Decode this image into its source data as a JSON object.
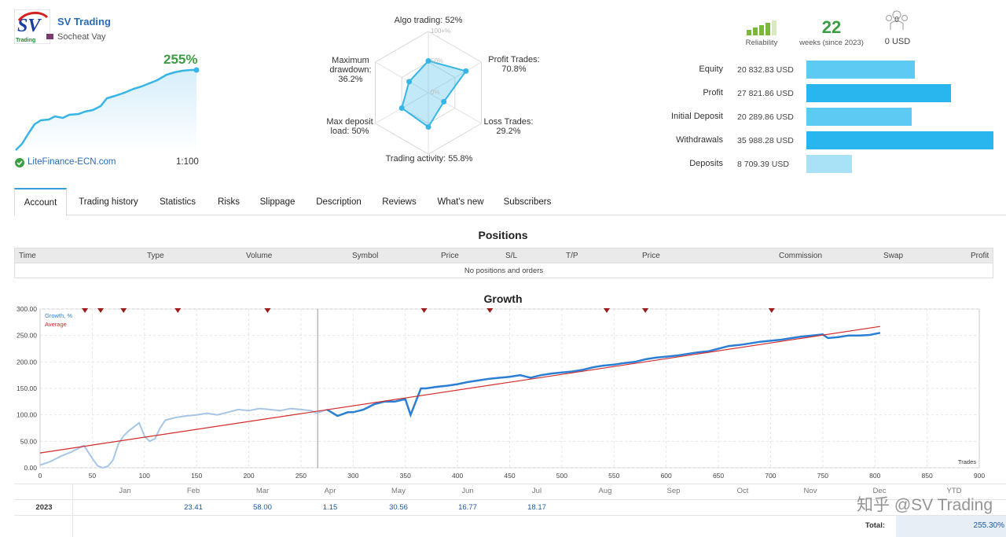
{
  "header": {
    "title": "SV Trading",
    "author": "Socheat Vay",
    "logo_text": "Trading",
    "growth": "255%",
    "broker": "LiteFinance-ECN.com",
    "leverage": "1:100"
  },
  "radar": {
    "algo": "Algo trading: 52%",
    "profit_trades": "Profit Trades:",
    "profit_trades_val": "70.8%",
    "loss_trades": "Loss Trades:",
    "loss_trades_val": "29.2%",
    "activity": "Trading activity: 55.8%",
    "deposit_load_1": "Max deposit",
    "deposit_load_2": "load: 50%",
    "max_dd_1": "Maximum",
    "max_dd_2": "drawdown:",
    "max_dd_3": "36.2%",
    "ring100": "100+%",
    "ring50": "50%",
    "ring0": "0%",
    "axis_values": [
      52,
      70.8,
      29.2,
      55.8,
      50,
      36.2
    ]
  },
  "stats": {
    "reliability": "Reliability",
    "weeks": "22",
    "weeks_label": "weeks (since 2023)",
    "subscribers_count": "0",
    "subscribers_funds": "0 USD"
  },
  "balances": [
    {
      "label": "Equity",
      "value": "20 832.83 USD",
      "amount": 20832.83,
      "color": "#5ccaf2"
    },
    {
      "label": "Profit",
      "value": "27 821.86 USD",
      "amount": 27821.86,
      "color": "#29b6ee"
    },
    {
      "label": "Initial Deposit",
      "value": "20 289.86 USD",
      "amount": 20289.86,
      "color": "#5ccaf2"
    },
    {
      "label": "Withdrawals",
      "value": "35 988.28 USD",
      "amount": 35988.28,
      "color": "#29b6ee"
    },
    {
      "label": "Deposits",
      "value": "8 709.39 USD",
      "amount": 8709.39,
      "color": "#a9e2f7"
    }
  ],
  "tabs": [
    "Account",
    "Trading history",
    "Statistics",
    "Risks",
    "Slippage",
    "Description",
    "Reviews",
    "What's new",
    "Subscribers"
  ],
  "positions": {
    "title": "Positions",
    "columns": [
      "Time",
      "Type",
      "Volume",
      "Symbol",
      "Price",
      "S/L",
      "T/P",
      "Price",
      "Commission",
      "Swap",
      "Profit"
    ],
    "empty": "No positions and orders"
  },
  "growth": {
    "title": "Growth",
    "legend_growth": "Growth, %",
    "legend_average": "Average",
    "trades_label": "Trades",
    "months": [
      "Jan",
      "Feb",
      "Mar",
      "Apr",
      "May",
      "Jun",
      "Jul",
      "Aug",
      "Sep",
      "Oct",
      "Nov",
      "Dec",
      "YTD"
    ],
    "year": "2023",
    "year_values": [
      "",
      "23.41",
      "58.00",
      "1.15",
      "30.56",
      "16.77",
      "18.17",
      "",
      "",
      "",
      "",
      "",
      ""
    ],
    "total_label": "Total:",
    "total_value": "255.30%",
    "watermark": "知乎 @SV Trading"
  },
  "chart_data": {
    "type": "line",
    "title": "Growth",
    "xlabel": "Trades",
    "ylabel": "",
    "xlim": [
      0,
      900
    ],
    "ylim": [
      0,
      300
    ],
    "x_ticks": [
      0,
      50,
      100,
      150,
      200,
      250,
      300,
      350,
      400,
      450,
      500,
      550,
      600,
      650,
      700,
      750,
      800,
      850,
      900
    ],
    "y_ticks": [
      "0.00",
      "50.00",
      "100.00",
      "150.00",
      "200.00",
      "250.00",
      "300.00"
    ],
    "series": [
      {
        "name": "Growth, %",
        "x": [
          0,
          10,
          20,
          30,
          42,
          50,
          55,
          60,
          65,
          70,
          75,
          80,
          85,
          95,
          100,
          105,
          110,
          115,
          120,
          130,
          140,
          150,
          160,
          170,
          180,
          190,
          200,
          210,
          220,
          230,
          240,
          250,
          260,
          265,
          275,
          285,
          295,
          300,
          310,
          320,
          330,
          340,
          350,
          355,
          360,
          365,
          370,
          380,
          390,
          400,
          410,
          420,
          430,
          440,
          450,
          460,
          470,
          480,
          490,
          500,
          510,
          520,
          530,
          540,
          550,
          560,
          570,
          580,
          590,
          600,
          610,
          620,
          630,
          640,
          650,
          660,
          670,
          680,
          690,
          700,
          710,
          720,
          730,
          740,
          750,
          755,
          765,
          775,
          785,
          795,
          805
        ],
        "y": [
          5,
          12,
          22,
          30,
          42,
          18,
          4,
          0,
          3,
          15,
          45,
          60,
          70,
          85,
          60,
          50,
          55,
          75,
          90,
          95,
          98,
          100,
          103,
          100,
          105,
          110,
          108,
          112,
          110,
          108,
          112,
          110,
          108,
          103,
          110,
          98,
          105,
          105,
          110,
          120,
          125,
          125,
          130,
          100,
          125,
          150,
          150,
          153,
          155,
          158,
          162,
          165,
          168,
          170,
          172,
          175,
          170,
          175,
          178,
          180,
          182,
          185,
          190,
          193,
          195,
          198,
          200,
          205,
          208,
          210,
          212,
          215,
          218,
          220,
          225,
          230,
          232,
          235,
          238,
          240,
          242,
          245,
          248,
          250,
          252,
          245,
          247,
          250,
          250,
          251,
          255
        ]
      },
      {
        "name": "Average",
        "x": [
          0,
          805
        ],
        "y": [
          28,
          267
        ]
      }
    ],
    "markers_x": [
      43,
      58,
      80,
      132,
      218,
      368,
      431,
      543,
      580,
      701
    ]
  }
}
